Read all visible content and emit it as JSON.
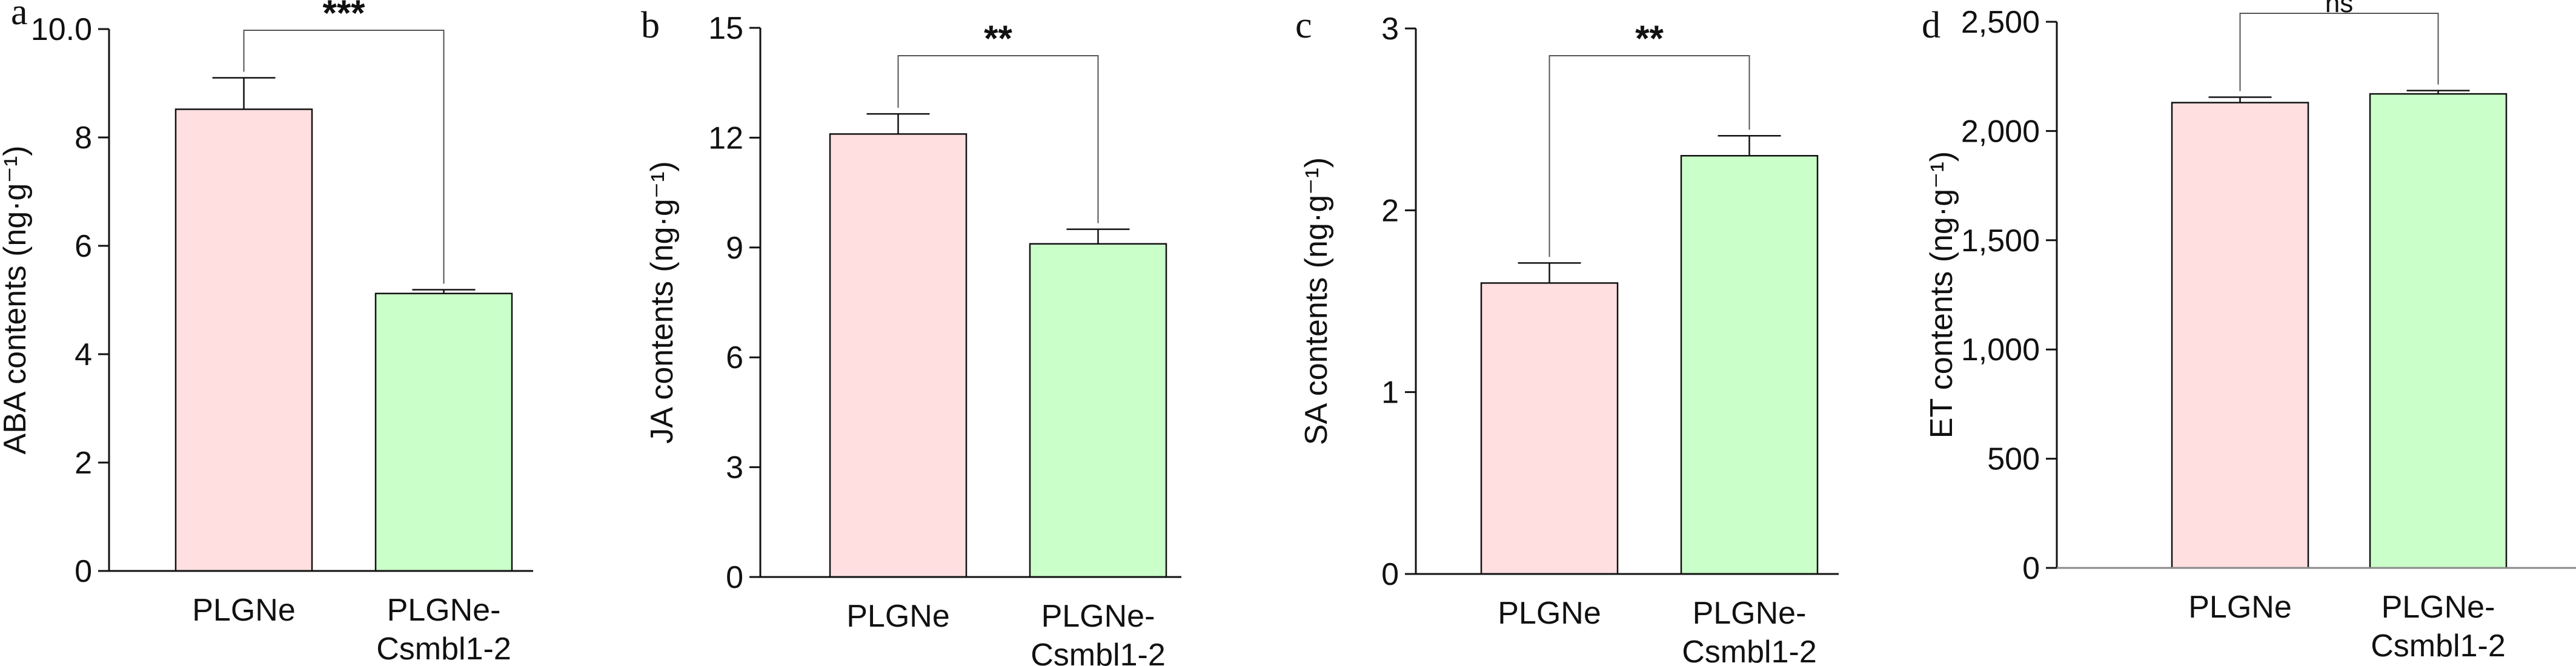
{
  "colors": {
    "group1": "#ffdfe0",
    "group2": "#caffca",
    "axis": "#111111",
    "bracket": "#555555"
  },
  "chart_data": [
    {
      "type": "bar",
      "panel": "a",
      "categories": [
        "PLGNe",
        "PLGNe-\nCsmbl1-2"
      ],
      "values": [
        8.52,
        5.12
      ],
      "errors": [
        0.58,
        0.07
      ],
      "ylabel": "ABA contents (ng·g⁻¹)",
      "ylim": [
        0,
        10
      ],
      "yticks": [
        0,
        2,
        4,
        6,
        8,
        10
      ],
      "yticklabels": [
        "0",
        "2",
        "4",
        "6",
        "8",
        "10.0"
      ],
      "significance": "***"
    },
    {
      "type": "bar",
      "panel": "b",
      "categories": [
        "PLGNe",
        "PLGNe-\nCsmbl1-2"
      ],
      "values": [
        12.1,
        9.1
      ],
      "errors": [
        0.55,
        0.4
      ],
      "ylabel": "JA contents (ng·g⁻¹)",
      "ylim": [
        0,
        15
      ],
      "yticks": [
        0,
        3,
        6,
        9,
        12,
        15
      ],
      "yticklabels": [
        "0",
        "3",
        "6",
        "9",
        "12",
        "15"
      ],
      "significance": "**"
    },
    {
      "type": "bar",
      "panel": "c",
      "categories": [
        "PLGNe",
        "PLGNe-\nCsmbl1-2"
      ],
      "values": [
        1.6,
        2.3
      ],
      "errors": [
        0.11,
        0.11
      ],
      "ylabel": "SA contents (ng·g⁻¹)",
      "ylim": [
        0,
        3
      ],
      "yticks": [
        0,
        1,
        2,
        3
      ],
      "yticklabels": [
        "0",
        "1",
        "2",
        "3"
      ],
      "significance": "**"
    },
    {
      "type": "bar",
      "panel": "d",
      "categories": [
        "PLGNe",
        "PLGNe-\nCsmbl1-2"
      ],
      "values": [
        2130,
        2170
      ],
      "errors": [
        25,
        15
      ],
      "ylabel": "ET contents (ng·g⁻¹)",
      "ylim": [
        0,
        2500
      ],
      "yticks": [
        0,
        500,
        1000,
        1500,
        2000,
        2500
      ],
      "yticklabels": [
        "0",
        "500",
        "1,000",
        "1,500",
        "2,000",
        "2,500"
      ],
      "significance": "ns"
    }
  ]
}
